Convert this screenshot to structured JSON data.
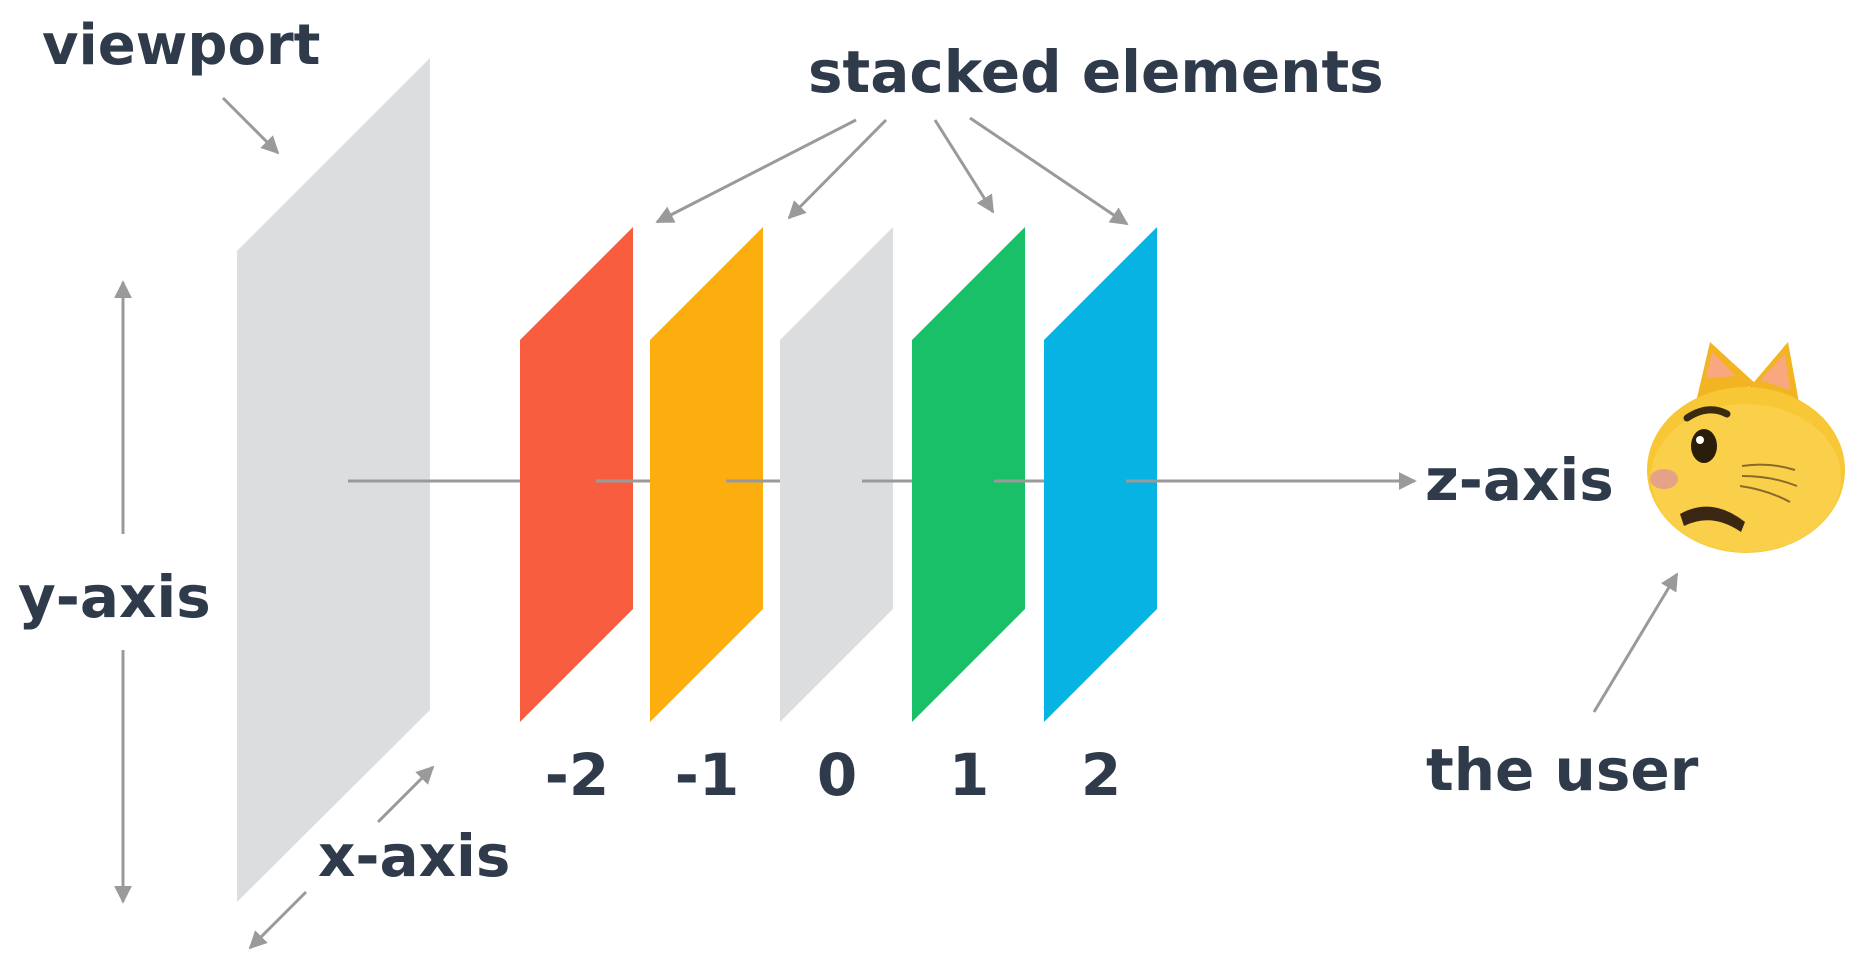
{
  "labels": {
    "viewport": "viewport",
    "stacked_elements": "stacked elements",
    "y_axis": "y-axis",
    "x_axis": "x-axis",
    "z_axis": "z-axis",
    "the_user": "the user"
  },
  "layers": [
    {
      "z_index": "-2",
      "color": "#f95d40"
    },
    {
      "z_index": "-1",
      "color": "#fbae0e"
    },
    {
      "z_index": "0",
      "color": "#dcdddf"
    },
    {
      "z_index": "1",
      "color": "#19c068"
    },
    {
      "z_index": "2",
      "color": "#06b3e3"
    }
  ],
  "colors": {
    "viewport": "#dcdddf",
    "text": "#2f3b4a",
    "arrow": "#9a9a9a",
    "cat_face": "#f7c735"
  },
  "icons": {
    "user": "cat-face-icon"
  }
}
